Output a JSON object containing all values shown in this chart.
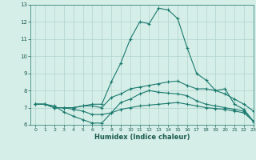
{
  "xlabel": "Humidex (Indice chaleur)",
  "bg_color": "#d6eee8",
  "line_color": "#1a7a6e",
  "grid_color": "#b0d4cc",
  "xlim": [
    -0.5,
    23
  ],
  "ylim": [
    6,
    13
  ],
  "yticks": [
    6,
    7,
    8,
    9,
    10,
    11,
    12,
    13
  ],
  "xticks": [
    0,
    1,
    2,
    3,
    4,
    5,
    6,
    7,
    8,
    9,
    10,
    11,
    12,
    13,
    14,
    15,
    16,
    17,
    18,
    19,
    20,
    21,
    22,
    23
  ],
  "line1_x": [
    0,
    1,
    2,
    3,
    4,
    5,
    6,
    7,
    8,
    9,
    10,
    11,
    12,
    13,
    14,
    15,
    16,
    17,
    18,
    19,
    20,
    21,
    22,
    23
  ],
  "line1_y": [
    7.2,
    7.2,
    7.0,
    7.0,
    7.0,
    7.1,
    7.2,
    7.2,
    8.5,
    9.6,
    11.0,
    12.0,
    11.9,
    12.8,
    12.7,
    12.2,
    10.5,
    9.0,
    8.6,
    8.0,
    8.1,
    7.2,
    6.9,
    6.2
  ],
  "line2_x": [
    0,
    1,
    2,
    3,
    4,
    5,
    6,
    7,
    8,
    9,
    10,
    11,
    12,
    13,
    14,
    15,
    16,
    17,
    18,
    19,
    20,
    21,
    22,
    23
  ],
  "line2_y": [
    7.2,
    7.2,
    7.0,
    7.0,
    7.0,
    7.1,
    7.1,
    7.0,
    7.6,
    7.8,
    8.1,
    8.2,
    8.3,
    8.4,
    8.5,
    8.55,
    8.3,
    8.1,
    8.1,
    8.0,
    7.8,
    7.5,
    7.2,
    6.8
  ],
  "line3_x": [
    0,
    1,
    2,
    3,
    4,
    5,
    6,
    7,
    8,
    9,
    10,
    11,
    12,
    13,
    14,
    15,
    16,
    17,
    18,
    19,
    20,
    21,
    22,
    23
  ],
  "line3_y": [
    7.2,
    7.2,
    7.0,
    7.0,
    6.9,
    6.8,
    6.6,
    6.6,
    6.7,
    6.9,
    7.0,
    7.1,
    7.15,
    7.2,
    7.25,
    7.3,
    7.2,
    7.1,
    7.0,
    6.95,
    6.9,
    6.8,
    6.7,
    6.2
  ],
  "line4_x": [
    0,
    1,
    2,
    3,
    4,
    5,
    6,
    7,
    8,
    9,
    10,
    11,
    12,
    13,
    14,
    15,
    16,
    17,
    18,
    19,
    20,
    21,
    22,
    23
  ],
  "line4_y": [
    7.2,
    7.2,
    7.1,
    6.75,
    6.5,
    6.3,
    6.1,
    6.1,
    6.7,
    7.3,
    7.5,
    7.8,
    8.0,
    7.9,
    7.85,
    7.8,
    7.7,
    7.4,
    7.2,
    7.1,
    7.0,
    6.9,
    6.8,
    6.2
  ]
}
